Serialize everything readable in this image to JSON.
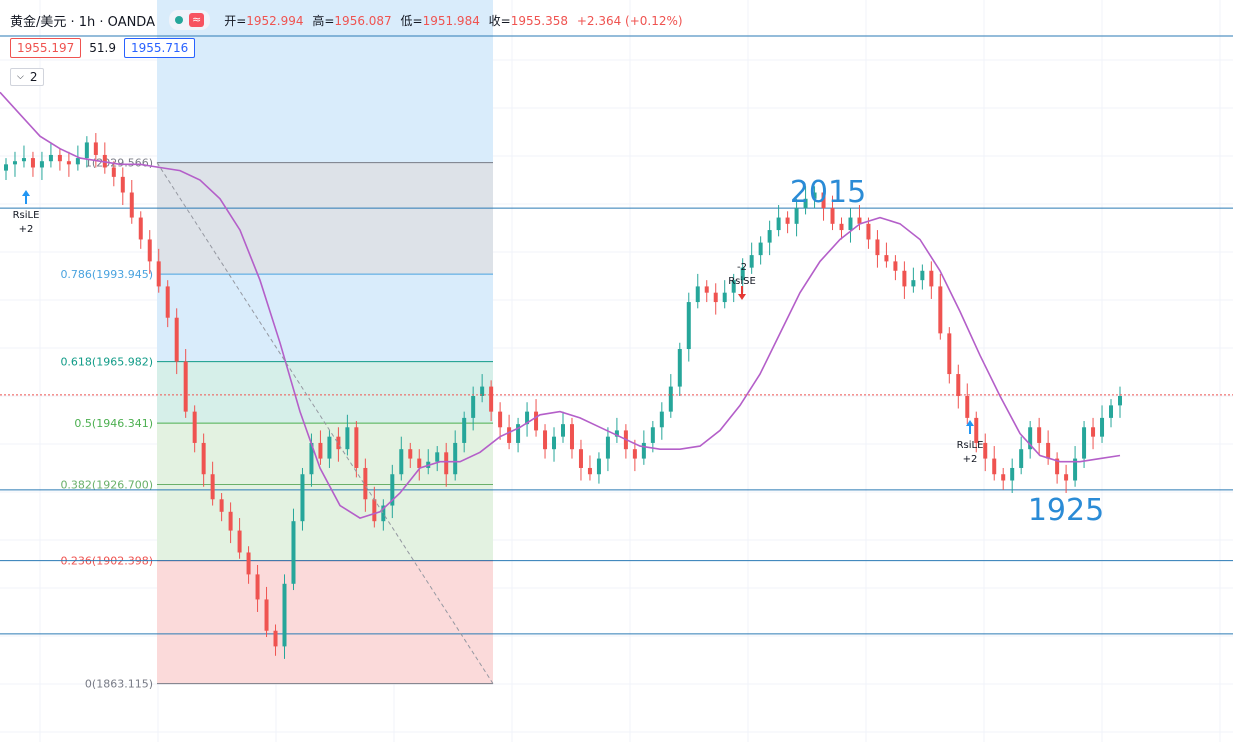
{
  "header": {
    "symbol": "黄金/美元 · 1h · OANDA",
    "open_label": "开=",
    "open": "1952.994",
    "high_label": "高=",
    "high": "1956.087",
    "low_label": "低=",
    "low": "1951.984",
    "close_label": "收=",
    "close": "1955.358",
    "change": "+2.364 (+0.12%)",
    "wave_icon": "≈",
    "bid": "1955.197",
    "spread": "51.9",
    "ask": "1955.716",
    "collapse_icon": "chevron-down-icon",
    "collapse_count": "2"
  },
  "colors": {
    "up": "#26a69a",
    "down": "#ef5350",
    "ma": "#b45fc9",
    "fib_zone_top": "#dde2e8",
    "fib_zone_blue": "#d9ecfb",
    "fib_zone_teal": "#d6efe9",
    "fib_zone_green": "#e3f2e1",
    "fib_zone_red": "#fbdada",
    "hline": "#2a7ab5"
  },
  "chart_data": {
    "type": "candlestick",
    "symbol": "XAUUSD",
    "timeframe": "1h",
    "ylim": [
      1855,
      2070
    ],
    "fibonacci": [
      {
        "level": "0.786",
        "price": 1993.945,
        "label": "0.786(1993.945)"
      },
      {
        "level": "0.618",
        "price": 1965.982,
        "label": "0.618(1965.982)"
      },
      {
        "level": "0.5",
        "price": 1946.341,
        "label": "0.5(1946.341)"
      },
      {
        "level": "0.382",
        "price": 1926.7,
        "label": "0.382(1926.700)"
      },
      {
        "level": "0.236",
        "price": 1902.398,
        "label": "0.236(1902.398)"
      },
      {
        "level": "0",
        "price": 1863.115,
        "label": "0(1863.115)"
      },
      {
        "level": "1",
        "price": 2029.566,
        "label": "1(2029.566)"
      }
    ],
    "horizontal_lines": [
      2070,
      2015,
      1925,
      1902.4,
      1879
    ],
    "annotations": [
      {
        "text": "2015",
        "price": 2015
      },
      {
        "text": "1925",
        "price": 1925
      }
    ],
    "signals": [
      {
        "type": "RsiLE",
        "qty": "+2",
        "label": "RsiLE",
        "qty_label": "+2"
      },
      {
        "type": "RsiSE",
        "qty": "-2",
        "label": "RsiSE",
        "qty_label": "-2"
      },
      {
        "type": "RsiLE",
        "qty": "+2",
        "label": "RsiLE",
        "qty_label": "+2"
      }
    ],
    "close_path": [
      2029,
      2030,
      2031,
      2028,
      2030,
      2032,
      2030,
      2029,
      2031,
      2036,
      2032,
      2028,
      2025,
      2020,
      2012,
      2005,
      1998,
      1990,
      1980,
      1966,
      1950,
      1940,
      1930,
      1922,
      1918,
      1912,
      1905,
      1898,
      1890,
      1880,
      1875,
      1895,
      1915,
      1930,
      1940,
      1935,
      1942,
      1938,
      1945,
      1932,
      1922,
      1915,
      1920,
      1930,
      1938,
      1935,
      1932,
      1934,
      1937,
      1930,
      1940,
      1948,
      1955,
      1958,
      1950,
      1945,
      1940,
      1946,
      1950,
      1944,
      1938,
      1942,
      1946,
      1938,
      1932,
      1930,
      1935,
      1942,
      1944,
      1938,
      1935,
      1940,
      1945,
      1950,
      1958,
      1970,
      1985,
      1990,
      1988,
      1985,
      1988,
      1992,
      1996,
      2000,
      2004,
      2008,
      2012,
      2010,
      2015,
      2018,
      2020,
      2015,
      2010,
      2008,
      2012,
      2010,
      2005,
      2000,
      1998,
      1995,
      1990,
      1992,
      1995,
      1990,
      1975,
      1962,
      1955,
      1948,
      1940,
      1935,
      1930,
      1928,
      1932,
      1938,
      1945,
      1940,
      1935,
      1930,
      1928,
      1935,
      1945,
      1942,
      1948,
      1952,
      1955
    ],
    "moving_average": [
      2052,
      2045,
      2038,
      2034,
      2031,
      2030,
      2029,
      2029,
      2028,
      2027,
      2024,
      2018,
      2008,
      1992,
      1972,
      1950,
      1932,
      1920,
      1916,
      1918,
      1924,
      1932,
      1934,
      1934,
      1937,
      1942,
      1945,
      1949,
      1950,
      1948,
      1945,
      1942,
      1939,
      1938,
      1938,
      1939,
      1944,
      1952,
      1962,
      1975,
      1988,
      1998,
      2005,
      2010,
      2012,
      2010,
      2005,
      1995,
      1982,
      1968,
      1955,
      1943,
      1936,
      1934,
      1934,
      1935,
      1936
    ]
  }
}
